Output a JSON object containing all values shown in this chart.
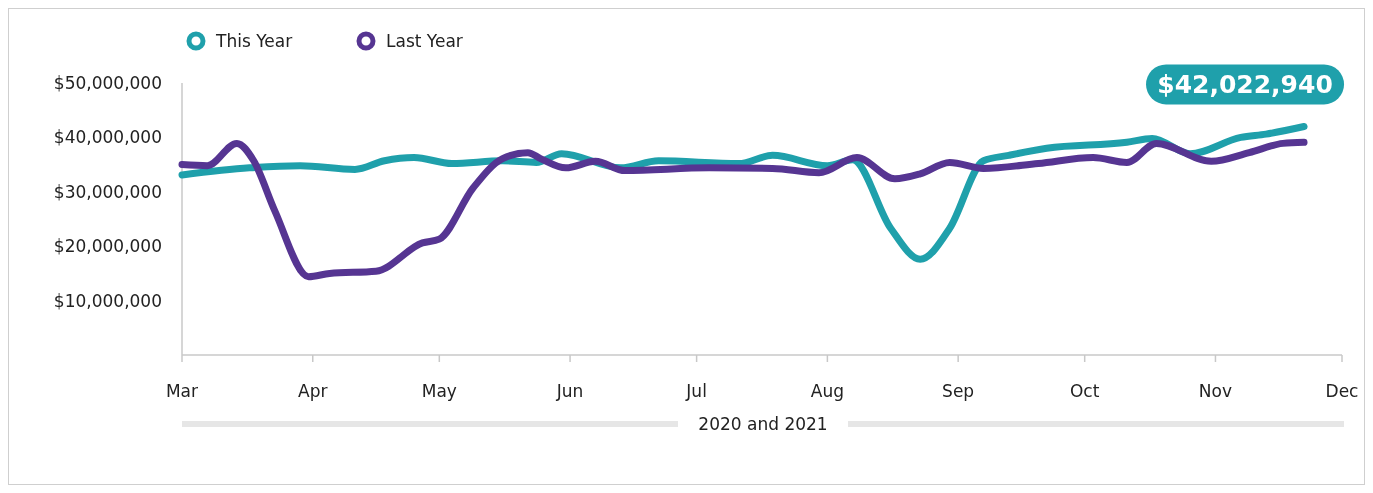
{
  "chart_data": {
    "type": "line",
    "xlabel": "2020 and 2021",
    "legend": "top left",
    "line_style": "solid",
    "marker": "none",
    "xlim": [
      "--03-01",
      "--12-01"
    ],
    "xticks": [
      {
        "value": "--03-01",
        "label": "Mar"
      },
      {
        "value": "--04-01",
        "label": "Apr"
      },
      {
        "value": "--05-01",
        "label": "May"
      },
      {
        "value": "--06-01",
        "label": "Jun"
      },
      {
        "value": "--07-01",
        "label": "Jul"
      },
      {
        "value": "--08-01",
        "label": "Aug"
      },
      {
        "value": "--09-01",
        "label": "Sep"
      },
      {
        "value": "--10-01",
        "label": "Oct"
      },
      {
        "value": "--11-01",
        "label": "Nov"
      },
      {
        "value": "--12-01",
        "label": "Dec"
      }
    ],
    "ylim": [
      0,
      50000000
    ],
    "yticks": [
      {
        "value": 10000000,
        "label": "$10,000,000"
      },
      {
        "value": 20000000,
        "label": "$20,000,000"
      },
      {
        "value": 30000000,
        "label": "$30,000,000"
      },
      {
        "value": 40000000,
        "label": "$40,000,000"
      },
      {
        "value": 50000000,
        "label": "$50,000,000"
      }
    ],
    "annotations": [
      {
        "text": "$42,022,940",
        "x": "--11-22",
        "y": 42022940
      }
    ],
    "series": [
      {
        "name": "This Year",
        "color": "#1fa0ab",
        "x": [
          "--03-01",
          "--03-17",
          "--03-29",
          "--04-11",
          "--04-18",
          "--04-25",
          "--05-04",
          "--05-16",
          "--05-24",
          "--05-30",
          "--06-13",
          "--06-22",
          "--07-11",
          "--07-19",
          "--08-01",
          "--08-07",
          "--08-16",
          "--08-23",
          "--08-30",
          "--09-07",
          "--09-13",
          "--09-22",
          "--10-11",
          "--10-17",
          "--10-26",
          "--11-07",
          "--11-13",
          "--11-22"
        ],
        "values": [
          33100000,
          34400000,
          34800000,
          34100000,
          35700000,
          36300000,
          35200000,
          35700000,
          35400000,
          37000000,
          34400000,
          35700000,
          35200000,
          36700000,
          34800000,
          35900000,
          23300000,
          17600000,
          23300000,
          35700000,
          36700000,
          38000000,
          39100000,
          39800000,
          37000000,
          40000000,
          40600000,
          42000000
        ]
      },
      {
        "name": "Last Year",
        "color": "#563592",
        "x": [
          "--03-01",
          "--03-07",
          "--03-14",
          "--03-18",
          "--03-23",
          "--03-31",
          "--04-05",
          "--04-16",
          "--04-27",
          "--05-01",
          "--05-09",
          "--05-16",
          "--05-22",
          "--05-25",
          "--05-31",
          "--06-07",
          "--06-14",
          "--07-04",
          "--07-19",
          "--07-30",
          "--08-08",
          "--08-17",
          "--08-23",
          "--08-30",
          "--09-07",
          "--09-20",
          "--10-03",
          "--10-11",
          "--10-18",
          "--10-31",
          "--11-09",
          "--11-17",
          "--11-22"
        ],
        "values": [
          35000000,
          34800000,
          38900000,
          35700000,
          26500000,
          14400000,
          15000000,
          15400000,
          20600000,
          21300000,
          30700000,
          36100000,
          37200000,
          36100000,
          34400000,
          35600000,
          33900000,
          34400000,
          34300000,
          33500000,
          36300000,
          32400000,
          33300000,
          35400000,
          34300000,
          35200000,
          36300000,
          35400000,
          38900000,
          35600000,
          37200000,
          38900000,
          39100000
        ]
      }
    ]
  }
}
